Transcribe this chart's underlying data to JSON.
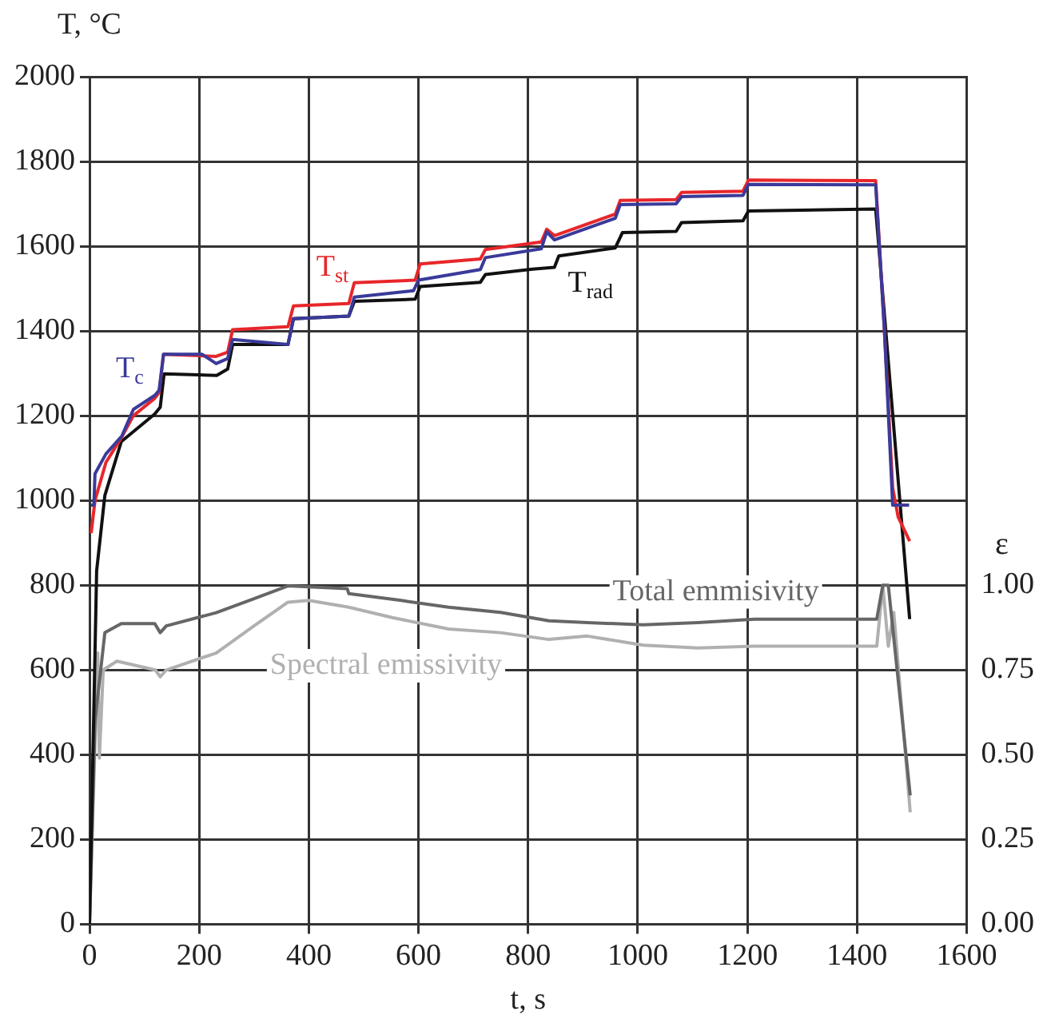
{
  "chart_data": {
    "type": "line",
    "xlabel": "t, s",
    "ylabel": "T, °C",
    "y2label": "ε",
    "xlim": [
      0,
      1600
    ],
    "xticks": [
      0,
      200,
      400,
      600,
      800,
      1000,
      1200,
      1400,
      1600
    ],
    "ylim": [
      0,
      2000
    ],
    "yticks": [
      0,
      200,
      400,
      600,
      800,
      1000,
      1200,
      1400,
      1600,
      1800,
      2000
    ],
    "y2lim": [
      0,
      2.5
    ],
    "y2ticks": [
      {
        "value": 0,
        "label": "0.00"
      },
      {
        "value": 0.25,
        "label": "0.25"
      },
      {
        "value": 0.5,
        "label": "0.50"
      },
      {
        "value": 0.75,
        "label": "0.75"
      },
      {
        "value": 1,
        "label": "1.00"
      }
    ],
    "grid": true,
    "legend": false,
    "marker": "none",
    "line_style": "solid",
    "series": [
      {
        "name": "T$_{c}$",
        "color": "#3a3a9a",
        "x": [
          3,
          8,
          10,
          30,
          59,
          80,
          119,
          127,
          135,
          205,
          231,
          252,
          261,
          362,
          372,
          473,
          483,
          591,
          600,
          713,
          722,
          824,
          834,
          848,
          959,
          968,
          1070,
          1080,
          1192,
          1202,
          1434,
          1450,
          1465,
          1495
        ],
        "values": [
          989,
          989,
          1063,
          1110,
          1152,
          1215,
          1248,
          1260,
          1345,
          1345,
          1323,
          1335,
          1380,
          1368,
          1429,
          1435,
          1480,
          1495,
          1520,
          1545,
          1573,
          1594,
          1634,
          1615,
          1666,
          1698,
          1700,
          1717,
          1720,
          1746,
          1745,
          1400,
          989,
          989
        ]
      },
      {
        "name": "T$_{st}$",
        "color": "#e8262a",
        "x": [
          3,
          10,
          30,
          59,
          80,
          119,
          127,
          135,
          231,
          252,
          261,
          362,
          372,
          473,
          483,
          594,
          603,
          713,
          722,
          824,
          834,
          848,
          959,
          968,
          1070,
          1080,
          1192,
          1202,
          1434,
          1450,
          1465,
          1475,
          1496
        ],
        "values": [
          923,
          1000,
          1090,
          1150,
          1200,
          1241,
          1255,
          1345,
          1340,
          1350,
          1403,
          1410,
          1459,
          1465,
          1514,
          1520,
          1558,
          1570,
          1592,
          1610,
          1640,
          1625,
          1676,
          1708,
          1710,
          1727,
          1730,
          1756,
          1755,
          1400,
          1030,
          961,
          904
        ]
      },
      {
        "name": "T$_{rad}$",
        "color": "#111111",
        "x": [
          0,
          13,
          28,
          58,
          119,
          129,
          136,
          232,
          252,
          261,
          362,
          372,
          473,
          483,
          594,
          603,
          713,
          722,
          808,
          848,
          856,
          959,
          972,
          1070,
          1080,
          1192,
          1202,
          1434,
          1496
        ],
        "values": [
          0,
          834,
          1012,
          1139,
          1204,
          1220,
          1299,
          1295,
          1310,
          1368,
          1368,
          1429,
          1435,
          1470,
          1475,
          1505,
          1515,
          1533,
          1546,
          1550,
          1577,
          1596,
          1632,
          1635,
          1656,
          1660,
          1683,
          1688,
          720
        ]
      },
      {
        "name": "Total emmisivity",
        "color": "#666666",
        "axis": "y2",
        "x": [
          0,
          10,
          28,
          58,
          119,
          129,
          140,
          231,
          300,
          362,
          400,
          470,
          473,
          569,
          655,
          750,
          838,
          908,
          1010,
          1110,
          1213,
          1320,
          1436,
          1447,
          1457,
          1497
        ],
        "values": [
          0,
          0.6,
          0.86,
          0.887,
          0.887,
          0.86,
          0.88,
          0.919,
          0.96,
          0.998,
          0.995,
          0.99,
          0.975,
          0.955,
          0.935,
          0.92,
          0.895,
          0.89,
          0.883,
          0.89,
          0.9,
          0.9,
          0.9,
          1.0,
          1.0,
          0.38
        ]
      },
      {
        "name": "Spectral emissivity",
        "color": "#b0b0b0",
        "axis": "y2",
        "x": [
          0,
          15,
          18,
          25,
          50,
          120,
          129,
          140,
          231,
          300,
          362,
          400,
          473,
          554,
          655,
          750,
          838,
          908,
          1010,
          1110,
          1213,
          1320,
          1436,
          1447,
          1457,
          1467,
          1497
        ],
        "values": [
          0,
          0.8,
          0.49,
          0.75,
          0.776,
          0.75,
          0.73,
          0.75,
          0.8,
          0.88,
          0.95,
          0.955,
          0.935,
          0.904,
          0.871,
          0.86,
          0.84,
          0.85,
          0.823,
          0.815,
          0.82,
          0.82,
          0.82,
          1.0,
          0.82,
          0.92,
          0.33
        ]
      }
    ]
  }
}
